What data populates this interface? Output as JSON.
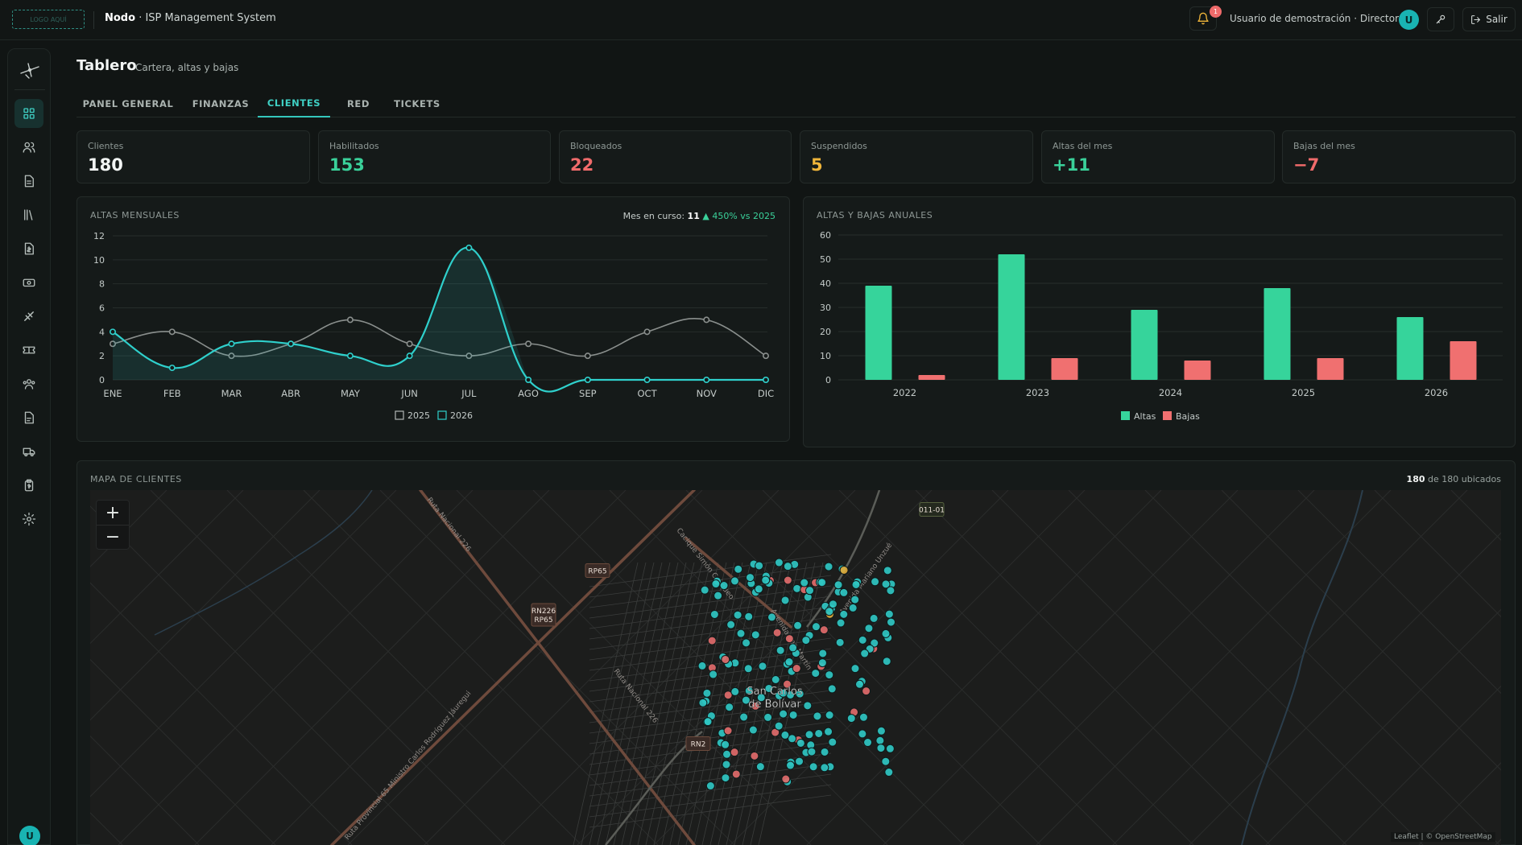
{
  "topbar": {
    "logo_text": "LOGO AQUÍ",
    "brand_name": "Nodo",
    "brand_sub": " · ISP Management System",
    "notifications_count": "1",
    "user_label": "Usuario de demostración · Director",
    "avatar_initial": "U",
    "logout_label": "Salir"
  },
  "sidebar": {
    "items": [
      "dashboard-icon",
      "users-icon",
      "document-icon",
      "library-icon",
      "invoice-icon",
      "cash-icon",
      "network-icon",
      "ticket-icon",
      "team-icon",
      "report-icon",
      "truck-icon",
      "clipboard-icon",
      "settings-icon"
    ],
    "active_index": 0,
    "avatar_initial": "U"
  },
  "header": {
    "title": "Tablero",
    "subtitle": "Cartera, altas y bajas"
  },
  "tabs": [
    {
      "label": "PANEL GENERAL",
      "active": false
    },
    {
      "label": "FINANZAS",
      "active": false
    },
    {
      "label": "CLIENTES",
      "active": true
    },
    {
      "label": "RED",
      "active": false
    },
    {
      "label": "TICKETS",
      "active": false
    }
  ],
  "stats": [
    {
      "label": "Clientes",
      "value": "180",
      "color": "#f2f5f4"
    },
    {
      "label": "Habilitados",
      "value": "153",
      "color": "#3ad19a"
    },
    {
      "label": "Bloqueados",
      "value": "22",
      "color": "#f06b6b"
    },
    {
      "label": "Suspendidos",
      "value": "5",
      "color": "#f0b53a"
    },
    {
      "label": "Altas del mes",
      "value": "+11",
      "color": "#3ad19a"
    },
    {
      "label": "Bajas del mes",
      "value": "−7",
      "color": "#f06b6b"
    }
  ],
  "monthly_panel": {
    "title": "ALTAS MENSUALES",
    "current_prefix": "Mes en curso: ",
    "current_value": "11",
    "current_delta": "▲ 450% vs 2025"
  },
  "annual_panel": {
    "title": "ALTAS Y BAJAS ANUALES"
  },
  "map_panel": {
    "title": "MAPA DE CLIENTES",
    "count_value": "180",
    "count_suffix": " de 180 ubicados",
    "zoom_in": "+",
    "zoom_out": "−",
    "attribution": "Leaflet | © OpenStreetMap",
    "city": "San Carlos\nde Bolívar",
    "road_tags": [
      "RP65",
      "RN226\nRP65",
      "011-01",
      "RN2"
    ],
    "road_names": [
      "Ruta Nacional 226",
      "Ruta Nacional 226",
      "Cacique Simón Coliqueo",
      "Avenida San Martín",
      "Avenida Mariano Unzué",
      "Ruta Provincial 65 Ministro Carlos Rodríguez Jáuregui"
    ],
    "colors": {
      "enabled": "#2fc6c2",
      "blocked": "#e06a6a",
      "suspended": "#e0a93a"
    }
  },
  "chart_data": [
    {
      "type": "line",
      "title": "ALTAS MENSUALES",
      "categories": [
        "ENE",
        "FEB",
        "MAR",
        "ABR",
        "MAY",
        "JUN",
        "JUL",
        "AGO",
        "SEP",
        "OCT",
        "NOV",
        "DIC"
      ],
      "series": [
        {
          "name": "2025",
          "values": [
            3,
            4,
            2,
            3,
            5,
            3,
            2,
            3,
            2,
            4,
            5,
            2
          ],
          "color": "#8a8f8d"
        },
        {
          "name": "2026",
          "values": [
            4,
            1,
            3,
            3,
            2,
            2,
            11,
            0,
            0,
            0,
            0,
            0
          ],
          "color": "#2fd0cc"
        }
      ],
      "ylim": [
        0,
        12
      ],
      "yticks": [
        0,
        2,
        4,
        6,
        8,
        10,
        12
      ],
      "grid": true,
      "legend": "bottom"
    },
    {
      "type": "bar",
      "title": "ALTAS Y BAJAS ANUALES",
      "categories": [
        "2022",
        "2023",
        "2024",
        "2025",
        "2026"
      ],
      "series": [
        {
          "name": "Altas",
          "values": [
            39,
            52,
            29,
            38,
            26
          ],
          "color": "#36d49b"
        },
        {
          "name": "Bajas",
          "values": [
            2,
            9,
            8,
            9,
            16
          ],
          "color": "#f07070"
        }
      ],
      "ylim": [
        0,
        60
      ],
      "yticks": [
        0,
        10,
        20,
        30,
        40,
        50,
        60
      ],
      "grid": true,
      "legend": "bottom"
    }
  ]
}
